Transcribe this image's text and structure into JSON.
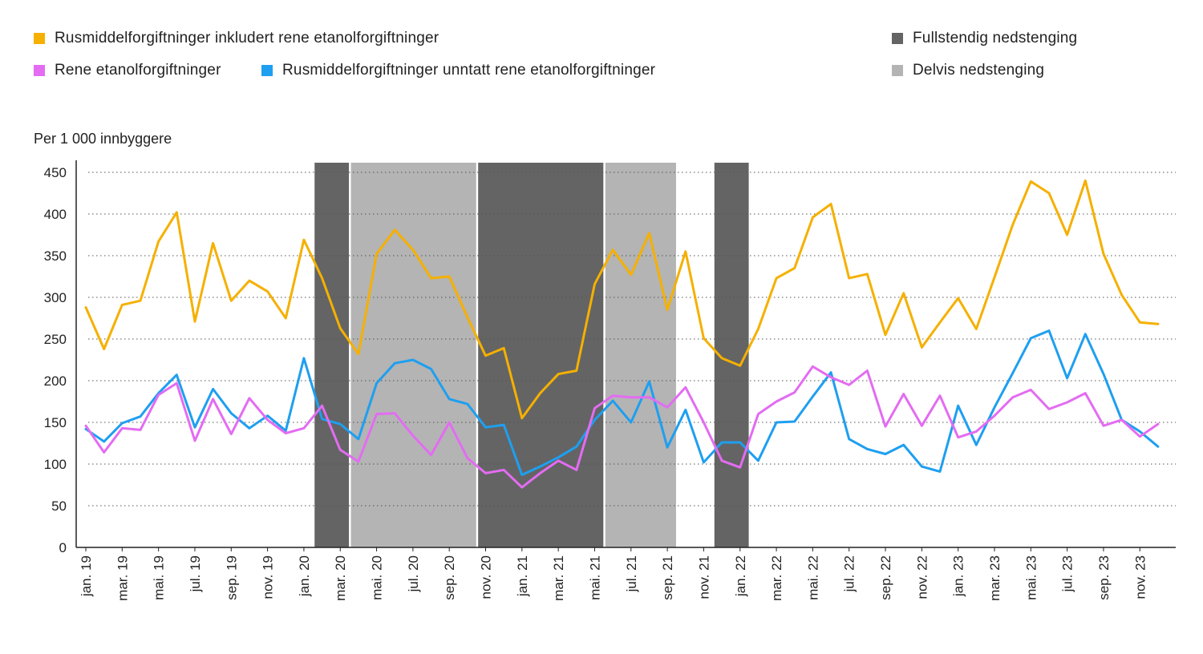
{
  "colors": {
    "total": "#F5B000",
    "ethanol": "#E36CF2",
    "other": "#1E9FF0",
    "full": "#646464",
    "partial": "#B4B4B4"
  },
  "legend": [
    {
      "key": "total",
      "label": "Rusmiddelforgiftninger inkludert rene etanolforgiftninger"
    },
    {
      "key": "ethanol",
      "label": "Rene etanolforgiftninger"
    },
    {
      "key": "other",
      "label": "Rusmiddelforgiftninger unntatt rene etanolforgiftninger"
    },
    {
      "key": "full",
      "label": "Fullstendig nedstenging"
    },
    {
      "key": "partial",
      "label": "Delvis nedstenging"
    }
  ],
  "chart_data": {
    "type": "line",
    "ylabel": "Per 1 000 innbyggere",
    "ylim": [
      0,
      450
    ],
    "yticks": [
      0,
      50,
      100,
      150,
      200,
      250,
      300,
      350,
      400,
      450
    ],
    "grid": "horizontal-dotted",
    "legend_position": "top",
    "xtick_labels": [
      "jan. 19",
      "mar. 19",
      "mai. 19",
      "jul. 19",
      "sep. 19",
      "nov. 19",
      "jan. 20",
      "mar. 20",
      "mai. 20",
      "jul. 20",
      "sep. 20",
      "nov. 20",
      "jan. 21",
      "mar. 21",
      "mai. 21",
      "jul. 21",
      "sep. 21",
      "nov. 21",
      "jan. 22",
      "mar. 22",
      "mai. 22",
      "jul. 22",
      "sep. 22",
      "nov. 22",
      "jan. 23",
      "mar. 23",
      "mai. 23",
      "jul. 23",
      "sep. 23",
      "nov. 23"
    ],
    "x": [
      "2019-01",
      "2019-02",
      "2019-03",
      "2019-04",
      "2019-05",
      "2019-06",
      "2019-07",
      "2019-08",
      "2019-09",
      "2019-10",
      "2019-11",
      "2019-12",
      "2020-01",
      "2020-02",
      "2020-03",
      "2020-04",
      "2020-05",
      "2020-06",
      "2020-07",
      "2020-08",
      "2020-09",
      "2020-10",
      "2020-11",
      "2020-12",
      "2021-01",
      "2021-02",
      "2021-03",
      "2021-04",
      "2021-05",
      "2021-06",
      "2021-07",
      "2021-08",
      "2021-09",
      "2021-10",
      "2021-11",
      "2021-12",
      "2022-01",
      "2022-02",
      "2022-03",
      "2022-04",
      "2022-05",
      "2022-06",
      "2022-07",
      "2022-08",
      "2022-09",
      "2022-10",
      "2022-11",
      "2022-12",
      "2023-01",
      "2023-02",
      "2023-03",
      "2023-04",
      "2023-05",
      "2023-06",
      "2023-07",
      "2023-08",
      "2023-09",
      "2023-10",
      "2023-11",
      "2023-12"
    ],
    "series": [
      {
        "key": "total",
        "name": "Rusmiddelforgiftninger inkludert rene etanolforgiftninger",
        "values": [
          288,
          238,
          291,
          296,
          367,
          402,
          271,
          365,
          296,
          320,
          307,
          275,
          369,
          323,
          263,
          232,
          352,
          381,
          357,
          323,
          325,
          276,
          230,
          239,
          155,
          185,
          208,
          212,
          316,
          357,
          327,
          377,
          285,
          355,
          251,
          227,
          218,
          262,
          323,
          335,
          396,
          412,
          323,
          328,
          255,
          305,
          240,
          270,
          299,
          262,
          324,
          387,
          439,
          425,
          375,
          440,
          352,
          303,
          270,
          268
        ]
      },
      {
        "key": "ethanol",
        "name": "Rene etanolforgiftninger",
        "values": [
          146,
          114,
          143,
          141,
          183,
          197,
          128,
          178,
          136,
          179,
          153,
          137,
          143,
          170,
          117,
          103,
          160,
          161,
          134,
          111,
          150,
          107,
          89,
          93,
          72,
          89,
          104,
          93,
          167,
          182,
          180,
          180,
          168,
          192,
          150,
          104,
          96,
          160,
          175,
          186,
          217,
          204,
          195,
          212,
          145,
          184,
          146,
          182,
          132,
          139,
          158,
          180,
          189,
          166,
          174,
          185,
          146,
          153,
          133,
          148
        ]
      },
      {
        "key": "other",
        "name": "Rusmiddelforgiftninger unntatt rene etanolforgiftninger",
        "values": [
          142,
          127,
          149,
          157,
          185,
          207,
          144,
          190,
          161,
          143,
          158,
          140,
          227,
          154,
          148,
          130,
          197,
          221,
          225,
          214,
          178,
          172,
          144,
          147,
          87,
          97,
          108,
          121,
          153,
          176,
          150,
          199,
          120,
          165,
          102,
          126,
          126,
          104,
          150,
          151,
          181,
          210,
          130,
          118,
          112,
          123,
          97,
          91,
          170,
          123,
          168,
          209,
          251,
          260,
          203,
          256,
          208,
          153,
          139,
          121
        ]
      }
    ],
    "shaded_periods": [
      {
        "type": "full",
        "start": "2020-02",
        "end": "2020-03"
      },
      {
        "type": "partial",
        "start": "2020-04",
        "end": "2020-10"
      },
      {
        "type": "full",
        "start": "2020-11",
        "end": "2021-05"
      },
      {
        "type": "partial",
        "start": "2021-06",
        "end": "2021-09"
      },
      {
        "type": "full",
        "start": "2021-12",
        "end": "2022-01"
      }
    ]
  }
}
